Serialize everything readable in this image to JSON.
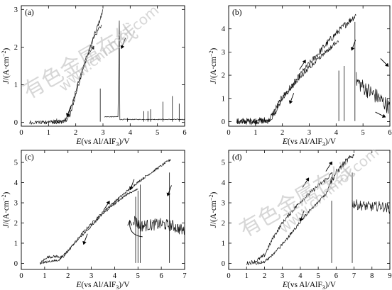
{
  "figure": {
    "watermark_cn": "有色金属在线",
    "watermark_url": "www.cnnmol.com"
  },
  "chart_data": [
    {
      "panel": "(a)",
      "type": "line",
      "xlabel": "E(vs Al/AlF3)/V",
      "ylabel": "J/(A·cm⁻²)",
      "xlim": [
        0,
        6
      ],
      "ylim": [
        -0.1,
        3.1
      ],
      "xticks": [
        0,
        1,
        2,
        3,
        4,
        5,
        6
      ],
      "yticks": [
        0,
        1,
        2,
        3
      ],
      "series": [
        {
          "segment": "forward-scan",
          "x": [
            1.15,
            1.6,
            1.8,
            2.0,
            2.2,
            2.4,
            2.6,
            2.8,
            2.95,
            3.0
          ],
          "y": [
            0.0,
            0.02,
            0.2,
            0.75,
            1.25,
            1.7,
            2.15,
            2.55,
            2.85,
            3.0
          ],
          "noise": 0.06
        },
        {
          "segment": "reverse-scan",
          "x": [
            2.95,
            2.7,
            2.5,
            2.3,
            2.1,
            1.9,
            1.7,
            1.5,
            1.1,
            0.3
          ],
          "y": [
            2.6,
            2.3,
            1.95,
            1.55,
            1.1,
            0.55,
            0.15,
            0.03,
            0.0,
            0.0
          ],
          "noise": 0.05
        },
        {
          "segment": "after-breakdown",
          "x": [
            3.05,
            3.55,
            3.6,
            3.62,
            6.0
          ],
          "y": [
            0.15,
            0.15,
            2.7,
            0.08,
            0.08
          ],
          "noise": 0.01
        }
      ],
      "spikes": [
        [
          1.3,
          0.1
        ],
        [
          2.9,
          0.9
        ],
        [
          3.9,
          0.12
        ],
        [
          4.5,
          0.3
        ],
        [
          4.65,
          0.3
        ],
        [
          4.75,
          0.35
        ],
        [
          5.2,
          0.55
        ],
        [
          5.55,
          0.7
        ],
        [
          5.8,
          0.5
        ]
      ],
      "arrows": [
        {
          "x": 2.55,
          "y": 1.9,
          "dir": "up"
        },
        {
          "x": 1.75,
          "y": 0.3,
          "dir": "down"
        },
        {
          "x": 3.75,
          "y": 2.1,
          "dir": "down"
        }
      ]
    },
    {
      "panel": "(b)",
      "type": "line",
      "xlabel": "E(vs Al/AlF3)/V",
      "ylabel": "J/(A·cm⁻²)",
      "xlim": [
        0,
        6
      ],
      "ylim": [
        -0.2,
        5
      ],
      "xticks": [
        0,
        1,
        2,
        3,
        4,
        5,
        6
      ],
      "yticks": [
        0,
        1,
        2,
        3,
        4
      ],
      "series": [
        {
          "segment": "forward-scan",
          "x": [
            0.3,
            1.5,
            1.7,
            2.0,
            2.4,
            2.8,
            3.2,
            3.6,
            4.0,
            4.4,
            4.75
          ],
          "y": [
            0.0,
            0.05,
            0.45,
            1.05,
            1.6,
            2.2,
            2.75,
            3.3,
            3.8,
            4.25,
            4.6
          ],
          "noise": 0.15
        },
        {
          "segment": "reverse-scan",
          "x": [
            4.1,
            3.6,
            3.0,
            2.5,
            2.0,
            1.7,
            1.5,
            1.0,
            0.3
          ],
          "y": [
            3.5,
            3.0,
            2.35,
            1.7,
            1.0,
            0.3,
            0.05,
            0.0,
            0.0
          ],
          "noise": 0.1
        },
        {
          "segment": "after-breakdown",
          "x": [
            4.75,
            4.8,
            5.0,
            5.3,
            5.6,
            5.8,
            6.0
          ],
          "y": [
            1.8,
            1.7,
            1.5,
            1.25,
            1.0,
            0.8,
            0.6
          ],
          "noise": 0.35
        }
      ],
      "spikes": [
        [
          4.1,
          2.2
        ],
        [
          4.3,
          2.4
        ],
        [
          4.7,
          4.3
        ]
      ],
      "arrows": [
        {
          "x": 2.75,
          "y": 2.45,
          "dir": "up"
        },
        {
          "x": 2.35,
          "y": 1.0,
          "dir": "down"
        },
        {
          "x": 4.65,
          "y": 3.3,
          "dir": "down"
        },
        {
          "x": 5.8,
          "y": 2.55,
          "dir": "down-right"
        },
        {
          "x": 5.65,
          "y": 0.3,
          "dir": "right"
        }
      ]
    },
    {
      "panel": "(c)",
      "type": "line",
      "xlabel": "E(vs Al/AlF3)/V",
      "ylabel": "J/(A·cm⁻²)",
      "xlim": [
        0,
        7
      ],
      "ylim": [
        -0.3,
        5.6
      ],
      "xticks": [
        0,
        1,
        2,
        3,
        4,
        5,
        6,
        7
      ],
      "yticks": [
        0,
        1,
        2,
        3,
        4,
        5
      ],
      "series": [
        {
          "segment": "forward-scan",
          "x": [
            0.8,
            1.1,
            1.5,
            1.8,
            2.2,
            2.7,
            3.2,
            3.7,
            4.2,
            4.7,
            5.2,
            5.7,
            6.2,
            6.4
          ],
          "y": [
            0.0,
            0.3,
            0.35,
            0.3,
            0.9,
            1.6,
            2.2,
            2.75,
            3.25,
            3.75,
            4.2,
            4.6,
            5.0,
            5.15
          ],
          "noise": 0.06
        },
        {
          "segment": "reverse-scan",
          "x": [
            5.0,
            4.5,
            4.0,
            3.5,
            3.0,
            2.5,
            2.0,
            1.6,
            1.2,
            0.8
          ],
          "y": [
            3.7,
            3.4,
            2.95,
            2.45,
            1.85,
            1.25,
            0.65,
            0.15,
            0.1,
            0.0
          ],
          "noise": 0.05
        },
        {
          "segment": "after-breakdown",
          "x": [
            4.8,
            5.1,
            5.5,
            6.0,
            6.5,
            7.0
          ],
          "y": [
            2.2,
            1.85,
            1.9,
            1.95,
            1.85,
            1.6
          ],
          "noise": 0.3
        }
      ],
      "spikes": [
        [
          4.9,
          3.3
        ],
        [
          5.0,
          3.6
        ],
        [
          5.1,
          3.9
        ],
        [
          6.35,
          4.5
        ]
      ],
      "arrows": [
        {
          "x": 3.65,
          "y": 2.85,
          "dir": "up"
        },
        {
          "x": 2.75,
          "y": 1.2,
          "dir": "down"
        },
        {
          "x": 4.75,
          "y": 3.9,
          "dir": "down"
        },
        {
          "x": 6.35,
          "y": 3.6,
          "dir": "down"
        },
        {
          "x": 4.65,
          "y": 1.6,
          "dir": "curve"
        }
      ]
    },
    {
      "panel": "(d)",
      "type": "line",
      "xlabel": "E(vs Al/AlF3)/V",
      "ylabel": "J/(A·cm⁻²)",
      "xlim": [
        0,
        9
      ],
      "ylim": [
        -0.3,
        5.6
      ],
      "xticks": [
        0,
        1,
        2,
        3,
        4,
        5,
        6,
        7,
        8,
        9
      ],
      "yticks": [
        0,
        1,
        2,
        3,
        4,
        5
      ],
      "series": [
        {
          "segment": "forward-scan",
          "x": [
            1.0,
            1.5,
            2.0,
            2.5,
            3.0,
            3.5,
            4.0,
            4.5,
            5.0,
            5.5,
            5.8
          ],
          "y": [
            0.0,
            0.1,
            0.4,
            1.3,
            2.0,
            2.55,
            3.05,
            3.45,
            3.85,
            4.2,
            4.5
          ],
          "noise": 0.1
        },
        {
          "segment": "reverse-scan",
          "x": [
            5.8,
            5.5,
            5.0,
            4.5,
            4.0,
            3.5,
            3.0,
            2.5,
            2.0,
            1.5
          ],
          "y": [
            4.4,
            3.5,
            3.05,
            2.6,
            2.05,
            1.5,
            0.95,
            0.45,
            0.1,
            0.0
          ],
          "noise": 0.08
        },
        {
          "segment": "second-scan",
          "x": [
            5.7,
            6.0,
            6.5,
            7.0
          ],
          "y": [
            4.0,
            4.5,
            5.0,
            5.4
          ],
          "noise": 0.15
        },
        {
          "segment": "after-breakdown",
          "x": [
            6.9,
            7.2,
            7.6,
            8.0,
            8.5,
            9.0
          ],
          "y": [
            3.0,
            2.9,
            2.85,
            2.8,
            2.85,
            2.7
          ],
          "noise": 0.25
        }
      ],
      "spikes": [
        [
          5.75,
          3.1
        ],
        [
          6.9,
          4.5
        ]
      ],
      "arrows": [
        {
          "x": 4.3,
          "y": 4.0,
          "dir": "up"
        },
        {
          "x": 5.6,
          "y": 4.8,
          "dir": "up"
        },
        {
          "x": 4.1,
          "y": 2.35,
          "dir": "down"
        }
      ]
    }
  ]
}
